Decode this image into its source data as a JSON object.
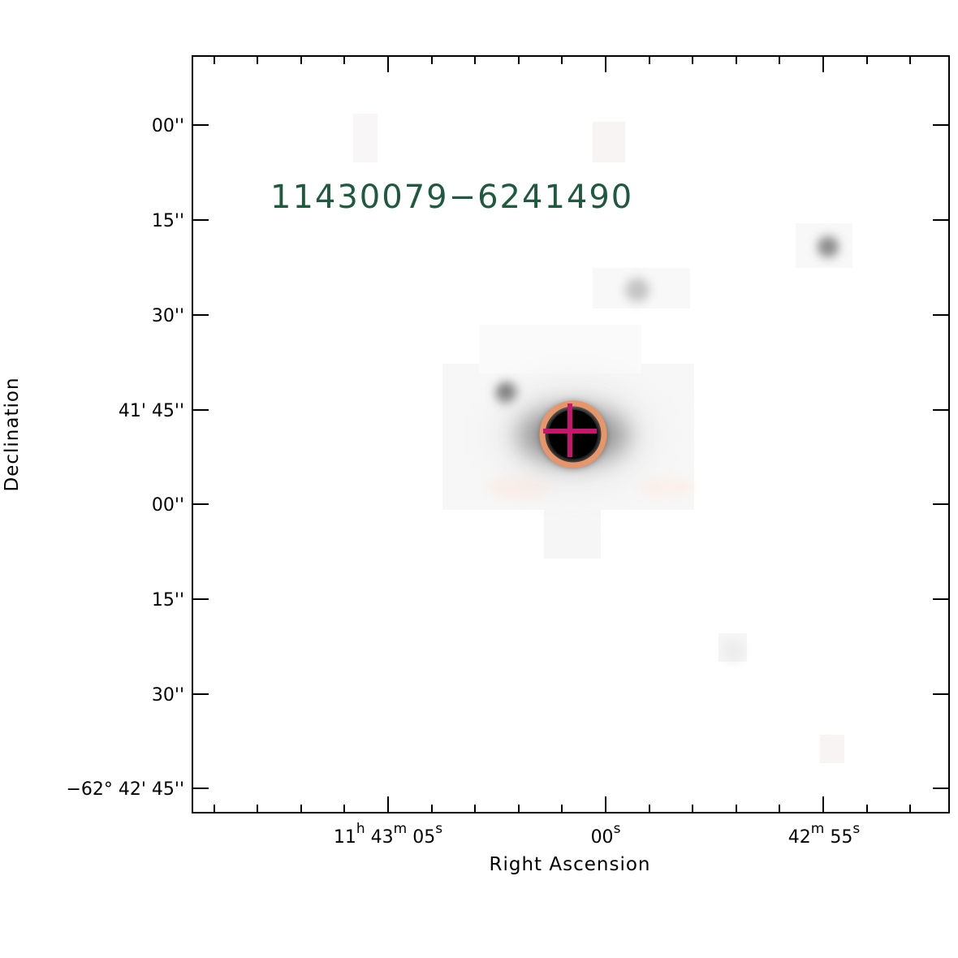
{
  "image": {
    "source_id": "11430079−6241490",
    "source_id_color": "#1f5a3f",
    "marker_circle_color": "#e8956a",
    "marker_cross_color": "#c8156e"
  },
  "axes": {
    "x_title": "Right Ascension",
    "y_title": "Declination",
    "y_ticks": [
      {
        "text": "00''"
      },
      {
        "text": "15''"
      },
      {
        "text": "30''"
      },
      {
        "text": "41' 45''"
      },
      {
        "text": "00''"
      },
      {
        "text": "15''"
      },
      {
        "text": "30''"
      },
      {
        "text": "−62° 42' 45''"
      }
    ],
    "x_ticks": [
      {
        "parts": [
          "11",
          "h",
          " 43",
          "m",
          " 05",
          "s"
        ]
      },
      {
        "parts": [
          "00",
          "s"
        ]
      },
      {
        "parts": [
          "42",
          "m",
          " 55",
          "s"
        ]
      }
    ]
  }
}
